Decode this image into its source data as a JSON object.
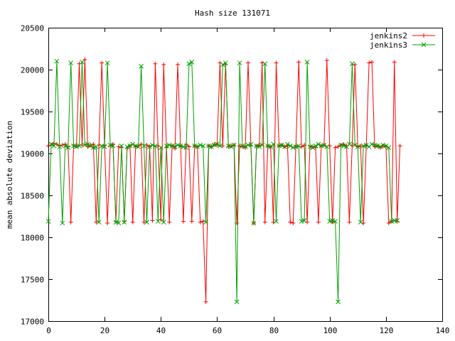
{
  "chart_data": {
    "type": "line",
    "title": "Hash size 131071",
    "xlabel": "",
    "ylabel": "mean absolute deviation",
    "xlim": [
      0,
      140
    ],
    "ylim": [
      17000,
      20500
    ],
    "x_ticks": [
      0,
      20,
      40,
      60,
      80,
      100,
      120,
      140
    ],
    "y_ticks": [
      17000,
      17500,
      18000,
      18500,
      19000,
      19500,
      20000,
      20500
    ],
    "grid": false,
    "legend_position": "top-right",
    "series": [
      {
        "name": "jenkins2",
        "color": "#ff0000",
        "marker": "plus",
        "x": [
          0,
          1,
          2,
          3,
          4,
          5,
          6,
          7,
          8,
          9,
          10,
          11,
          12,
          13,
          14,
          15,
          16,
          17,
          18,
          19,
          20,
          21,
          22,
          23,
          24,
          25,
          26,
          27,
          28,
          29,
          30,
          31,
          32,
          33,
          34,
          35,
          36,
          37,
          38,
          39,
          40,
          41,
          42,
          43,
          44,
          45,
          46,
          47,
          48,
          49,
          50,
          51,
          52,
          53,
          54,
          55,
          56,
          57,
          58,
          59,
          60,
          61,
          62,
          63,
          64,
          65,
          66,
          67,
          68,
          69,
          70,
          71,
          72,
          73,
          74,
          75,
          76,
          77,
          78,
          79,
          80,
          81,
          82,
          83,
          84,
          85,
          86,
          87,
          88,
          89,
          90,
          91,
          92,
          93,
          94,
          95,
          96,
          97,
          98,
          99,
          100,
          101,
          102,
          103,
          104,
          105,
          106,
          107,
          108,
          109,
          110,
          111,
          112,
          113,
          114,
          115,
          116,
          117,
          118,
          119,
          120,
          121,
          122,
          123,
          124,
          125
        ],
        "y": [
          19090,
          19100,
          19120,
          19110,
          19090,
          19100,
          19110,
          19080,
          18180,
          19100,
          19090,
          20070,
          19100,
          20120,
          19080,
          19100,
          19110,
          18180,
          19100,
          20080,
          19100,
          18170,
          19090,
          19110,
          18190,
          19080,
          19070,
          18190,
          19060,
          19090,
          18180,
          19080,
          19090,
          19110,
          18180,
          19100,
          19080,
          18200,
          20070,
          19090,
          18210,
          20060,
          19070,
          18180,
          19090,
          19060,
          20060,
          19090,
          18190,
          19110,
          19080,
          18190,
          19090,
          19080,
          18180,
          18190,
          17230,
          19090,
          19080,
          19110,
          19100,
          20080,
          19090,
          20060,
          19080,
          19090,
          19100,
          18170,
          19090,
          19080,
          19070,
          20080,
          19090,
          18170,
          19090,
          19100,
          20080,
          18180,
          19090,
          19080,
          18180,
          20080,
          19090,
          19100,
          19080,
          19090,
          18180,
          18170,
          19090,
          20090,
          19080,
          19100,
          18180,
          19090,
          19080,
          19070,
          18180,
          19090,
          19100,
          20110,
          19090,
          18180,
          19070,
          19080,
          19100,
          19110,
          19090,
          18180,
          19100,
          20060,
          19080,
          19090,
          18170,
          19090,
          20080,
          20090,
          19080,
          19090,
          19070,
          19090,
          19080,
          18170,
          18190,
          20090,
          18190,
          19090
        ]
      },
      {
        "name": "jenkins3",
        "color": "#00a000",
        "marker": "x",
        "x": [
          0,
          1,
          2,
          3,
          4,
          5,
          6,
          7,
          8,
          9,
          10,
          11,
          12,
          13,
          14,
          15,
          16,
          17,
          18,
          19,
          20,
          21,
          22,
          23,
          24,
          25,
          26,
          27,
          28,
          29,
          30,
          31,
          32,
          33,
          34,
          35,
          36,
          37,
          38,
          39,
          40,
          41,
          42,
          43,
          44,
          45,
          46,
          47,
          48,
          49,
          50,
          51,
          52,
          53,
          54,
          55,
          56,
          57,
          58,
          59,
          60,
          61,
          62,
          63,
          64,
          65,
          66,
          67,
          68,
          69,
          70,
          71,
          72,
          73,
          74,
          75,
          76,
          77,
          78,
          79,
          80,
          81,
          82,
          83,
          84,
          85,
          86,
          87,
          88,
          89,
          90,
          91,
          92,
          93,
          94,
          95,
          96,
          97,
          98,
          99,
          100,
          101,
          102,
          103,
          104,
          105,
          106,
          107,
          108,
          109,
          110,
          111,
          112,
          113,
          114,
          115,
          116,
          117,
          118,
          119,
          120,
          121,
          122,
          123,
          124
        ],
        "y": [
          18190,
          19110,
          19090,
          20100,
          19080,
          18170,
          19090,
          19070,
          20080,
          19090,
          19080,
          19090,
          20090,
          19100,
          19110,
          19090,
          19070,
          19080,
          18180,
          19090,
          19080,
          20080,
          19100,
          19090,
          18180,
          18170,
          19090,
          18180,
          19080,
          19090,
          19110,
          19090,
          19080,
          20040,
          19090,
          18180,
          19080,
          19100,
          19090,
          18190,
          19070,
          18180,
          19090,
          19100,
          19090,
          19080,
          19100,
          19090,
          19080,
          19070,
          20070,
          20090,
          19090,
          19080,
          19100,
          19090,
          18180,
          19090,
          19080,
          19100,
          19110,
          19090,
          20060,
          20080,
          19090,
          19080,
          19100,
          17230,
          20080,
          19090,
          19080,
          19100,
          19110,
          18170,
          19090,
          19080,
          19100,
          20070,
          19090,
          19080,
          19110,
          18190,
          19090,
          19100,
          19080,
          19110,
          19090,
          19070,
          19080,
          19090,
          18190,
          18200,
          20090,
          19080,
          19070,
          19090,
          19110,
          19090,
          19100,
          19080,
          18190,
          18200,
          18190,
          17230,
          19100,
          19090,
          19080,
          19110,
          20070,
          19100,
          19080,
          18180,
          19090,
          19100,
          19080,
          19110,
          19100,
          19090,
          19080,
          19100,
          19090,
          19070,
          18190,
          18200,
          18200
        ]
      }
    ]
  }
}
